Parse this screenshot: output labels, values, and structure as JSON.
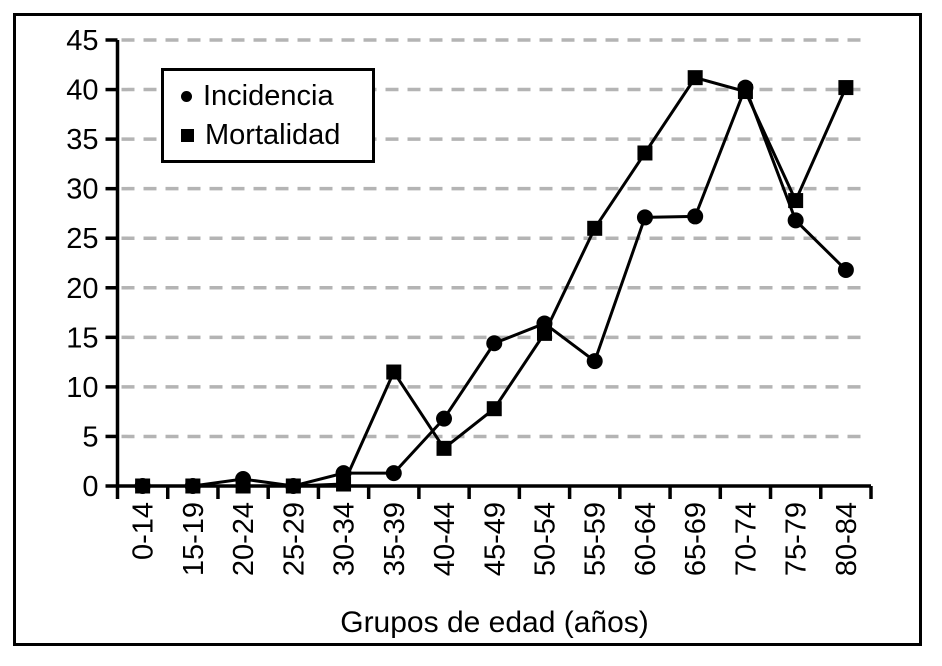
{
  "chart_data": {
    "type": "line",
    "title": "",
    "xlabel": "Grupos de edad (años)",
    "ylabel": "",
    "categories": [
      "0-14",
      "15-19",
      "20-24",
      "25-29",
      "30-34",
      "35-39",
      "40-44",
      "45-49",
      "50-54",
      "55-59",
      "60-64",
      "65-69",
      "70-74",
      "75-79",
      "80-84"
    ],
    "series": [
      {
        "name": "Incidencia",
        "marker": "circle",
        "values": [
          0,
          0,
          0.7,
          0,
          1.3,
          1.3,
          6.8,
          14.4,
          16.4,
          12.6,
          27.1,
          27.2,
          40.2,
          26.8,
          21.8
        ]
      },
      {
        "name": "Mortalidad",
        "marker": "square",
        "values": [
          0,
          0,
          0,
          0,
          0.2,
          11.5,
          3.8,
          7.8,
          15.4,
          26.0,
          33.6,
          41.2,
          39.8,
          28.8,
          40.2
        ]
      }
    ],
    "ylim": [
      0,
      45
    ],
    "ytick_step": 5,
    "grid": "horizontal-dashed",
    "legend_position": "upper-left-inside",
    "colors": {
      "line": "#000000",
      "grid": "#b4b4b4",
      "background": "#ffffff",
      "frame": "#000000"
    }
  }
}
